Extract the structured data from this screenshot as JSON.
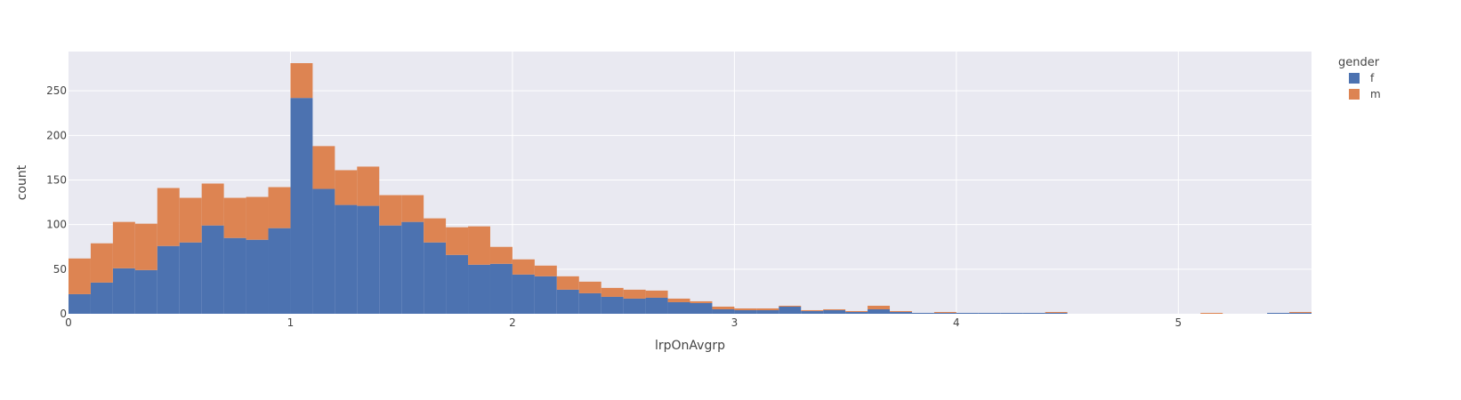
{
  "chart_data": {
    "type": "bar",
    "stacked": true,
    "xlabel": "lrpOnAvgrp",
    "ylabel": "count",
    "xlim": [
      0,
      5.6
    ],
    "ylim": [
      0,
      294
    ],
    "bin_width": 0.1,
    "bin_starts": [
      0,
      0.1,
      0.2,
      0.3,
      0.4,
      0.5,
      0.6,
      0.7,
      0.8,
      0.9,
      1.0,
      1.1,
      1.2,
      1.3,
      1.4,
      1.5,
      1.6,
      1.7,
      1.8,
      1.9,
      2.0,
      2.1,
      2.2,
      2.3,
      2.4,
      2.5,
      2.6,
      2.7,
      2.8,
      2.9,
      3.0,
      3.1,
      3.2,
      3.3,
      3.4,
      3.5,
      3.6,
      3.7,
      3.8,
      3.9,
      4.0,
      4.1,
      4.2,
      4.3,
      4.4,
      4.5,
      4.6,
      4.7,
      4.8,
      4.9,
      5.0,
      5.1,
      5.2,
      5.3,
      5.4,
      5.5
    ],
    "x_ticks": [
      "0",
      "1",
      "2",
      "3",
      "4",
      "5"
    ],
    "x_tick_values": [
      0,
      1,
      2,
      3,
      4,
      5
    ],
    "y_ticks": [
      "0",
      "50",
      "100",
      "150",
      "200",
      "250"
    ],
    "y_tick_values": [
      0,
      50,
      100,
      150,
      200,
      250
    ],
    "grid": true,
    "plot_background": "#e9e9f1",
    "legend": {
      "title": "gender",
      "position": "right"
    },
    "series": [
      {
        "name": "f",
        "color": "#4c72b0",
        "values": [
          22,
          35,
          51,
          49,
          76,
          80,
          99,
          85,
          83,
          96,
          242,
          140,
          122,
          121,
          99,
          103,
          80,
          66,
          55,
          56,
          44,
          42,
          27,
          23,
          19,
          17,
          18,
          13,
          12,
          5,
          4,
          4,
          8,
          3,
          4,
          2,
          5,
          2,
          1,
          1,
          1,
          1,
          1,
          1,
          1,
          0,
          0,
          0,
          0,
          0,
          0,
          0,
          0,
          0,
          1,
          1
        ]
      },
      {
        "name": "m",
        "color": "#dd8452",
        "values": [
          40,
          44,
          52,
          52,
          65,
          50,
          47,
          45,
          48,
          46,
          39,
          48,
          39,
          44,
          34,
          30,
          27,
          31,
          43,
          19,
          17,
          12,
          15,
          13,
          10,
          10,
          8,
          4,
          2,
          3,
          2,
          2,
          1,
          1,
          1,
          1,
          4,
          1,
          0,
          1,
          0,
          0,
          0,
          0,
          1,
          0,
          0,
          0,
          0,
          0,
          0,
          1,
          0,
          0,
          0,
          1
        ]
      }
    ]
  }
}
